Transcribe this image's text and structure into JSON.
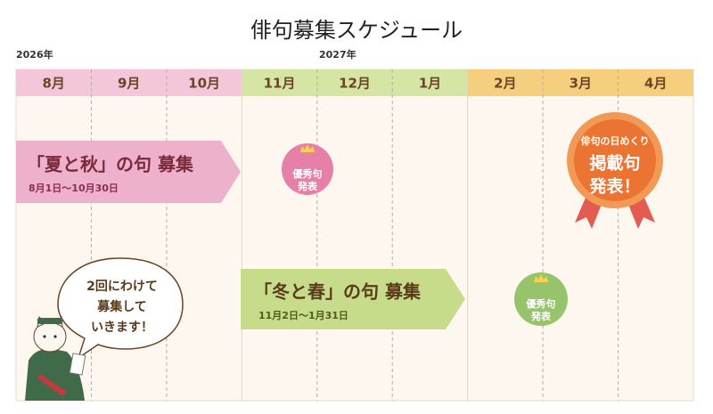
{
  "title": "俳句募集スケジュール",
  "years": [
    "2026年",
    "2027年"
  ],
  "months": [
    "8月",
    "9月",
    "10月",
    "11月",
    "12月",
    "1月",
    "2月",
    "3月",
    "4月"
  ],
  "campaigns": [
    {
      "label": "「夏と秋」の句 募集",
      "period": "8月1日〜10月30日"
    },
    {
      "label": "「冬と春」の句 募集",
      "period": "11月2日〜1月31日"
    }
  ],
  "badges": [
    {
      "lines": [
        "優秀句",
        "発表"
      ]
    },
    {
      "lines": [
        "優秀句",
        "発表"
      ]
    },
    {
      "lines": [
        "俳句の日めくり",
        "掲載句",
        "発表！"
      ]
    }
  ],
  "bubble": {
    "lines": [
      "2回にわけて",
      "募集して",
      "いきます！"
    ]
  }
}
